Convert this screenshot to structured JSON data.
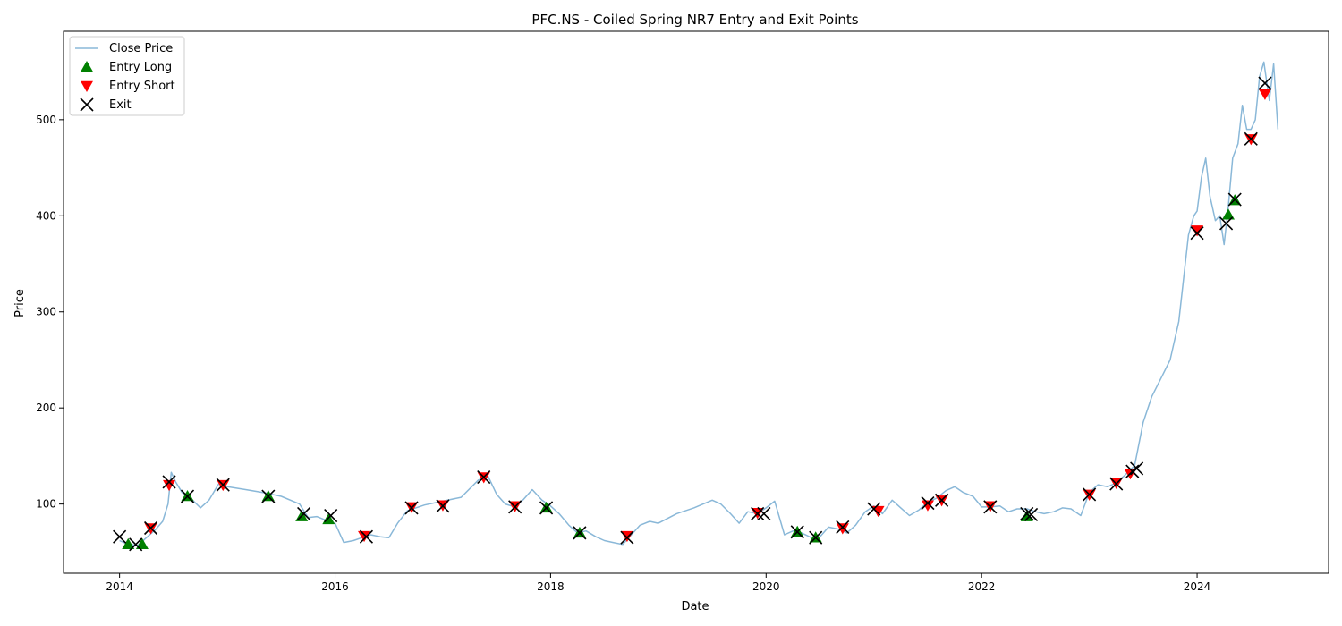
{
  "chart_data": {
    "type": "line",
    "title": "PFC.NS - Coiled Spring NR7 Entry and Exit Points",
    "xlabel": "Date",
    "ylabel": "Price",
    "xlim": [
      2013.48,
      2025.22
    ],
    "ylim": [
      28,
      592
    ],
    "xticks": [
      2014,
      2016,
      2018,
      2020,
      2022,
      2024
    ],
    "xtick_labels": [
      "2014",
      "2016",
      "2018",
      "2020",
      "2022",
      "2024"
    ],
    "yticks": [
      100,
      200,
      300,
      400,
      500
    ],
    "ytick_labels": [
      "100",
      "200",
      "300",
      "400",
      "500"
    ],
    "grid": false,
    "legend": {
      "placement": "top-left",
      "entries": [
        {
          "key": "close",
          "label": "Close Price",
          "color": "#8ab8d8",
          "marker": "line"
        },
        {
          "key": "long",
          "label": "Entry Long",
          "color": "#008000",
          "marker": "triangle-up"
        },
        {
          "key": "short",
          "label": "Entry Short",
          "color": "#ff0000",
          "marker": "triangle-down"
        },
        {
          "key": "exit",
          "label": "Exit",
          "color": "#000000",
          "marker": "x"
        }
      ]
    },
    "series": [
      {
        "name": "Close Price",
        "color": "#8ab8d8",
        "x": [
          2014.0,
          2014.08,
          2014.17,
          2014.25,
          2014.33,
          2014.4,
          2014.45,
          2014.48,
          2014.52,
          2014.58,
          2014.67,
          2014.75,
          2014.83,
          2014.92,
          2015.0,
          2015.17,
          2015.33,
          2015.5,
          2015.67,
          2015.75,
          2015.83,
          2015.92,
          2016.0,
          2016.08,
          2016.17,
          2016.25,
          2016.33,
          2016.42,
          2016.5,
          2016.58,
          2016.67,
          2016.83,
          2017.0,
          2017.17,
          2017.33,
          2017.42,
          2017.5,
          2017.58,
          2017.67,
          2017.75,
          2017.83,
          2017.92,
          2018.0,
          2018.08,
          2018.17,
          2018.25,
          2018.33,
          2018.42,
          2018.5,
          2018.58,
          2018.67,
          2018.75,
          2018.83,
          2018.92,
          2019.0,
          2019.17,
          2019.33,
          2019.5,
          2019.58,
          2019.67,
          2019.75,
          2019.83,
          2019.92,
          2020.0,
          2020.08,
          2020.17,
          2020.25,
          2020.33,
          2020.42,
          2020.5,
          2020.58,
          2020.67,
          2020.75,
          2020.83,
          2020.92,
          2021.0,
          2021.08,
          2021.17,
          2021.25,
          2021.33,
          2021.42,
          2021.5,
          2021.58,
          2021.67,
          2021.75,
          2021.83,
          2021.92,
          2022.0,
          2022.08,
          2022.17,
          2022.25,
          2022.33,
          2022.42,
          2022.5,
          2022.58,
          2022.67,
          2022.75,
          2022.83,
          2022.92,
          2023.0,
          2023.08,
          2023.17,
          2023.25,
          2023.33,
          2023.42,
          2023.5,
          2023.58,
          2023.67,
          2023.75,
          2023.83,
          2023.92,
          2023.97,
          2024.0,
          2024.04,
          2024.08,
          2024.12,
          2024.17,
          2024.21,
          2024.25,
          2024.29,
          2024.33,
          2024.38,
          2024.42,
          2024.46,
          2024.5,
          2024.54,
          2024.58,
          2024.62,
          2024.67,
          2024.71,
          2024.75
        ],
        "values": [
          62,
          58,
          57,
          65,
          73,
          82,
          100,
          133,
          123,
          112,
          105,
          96,
          104,
          121,
          118,
          115,
          112,
          108,
          100,
          86,
          87,
          83,
          80,
          60,
          62,
          65,
          68,
          66,
          65,
          80,
          93,
          99,
          103,
          107,
          125,
          129,
          110,
          100,
          97,
          105,
          115,
          104,
          98,
          90,
          78,
          70,
          72,
          66,
          62,
          60,
          58,
          68,
          78,
          82,
          80,
          90,
          96,
          104,
          100,
          90,
          80,
          92,
          90,
          96,
          103,
          68,
          72,
          70,
          65,
          66,
          76,
          74,
          70,
          78,
          92,
          98,
          90,
          104,
          96,
          88,
          94,
          102,
          106,
          114,
          118,
          112,
          108,
          97,
          97,
          98,
          92,
          95,
          95,
          92,
          90,
          92,
          96,
          95,
          88,
          112,
          120,
          118,
          122,
          130,
          140,
          185,
          212,
          232,
          250,
          290,
          380,
          400,
          405,
          440,
          460,
          420,
          395,
          400,
          370,
          410,
          460,
          475,
          515,
          490,
          490,
          500,
          545,
          560,
          520,
          558,
          490
        ]
      }
    ],
    "entries_long": [
      {
        "x": 2014.08,
        "y": 58
      },
      {
        "x": 2014.21,
        "y": 58
      },
      {
        "x": 2014.63,
        "y": 108
      },
      {
        "x": 2015.38,
        "y": 108
      },
      {
        "x": 2015.69,
        "y": 87
      },
      {
        "x": 2015.94,
        "y": 84
      },
      {
        "x": 2017.96,
        "y": 96
      },
      {
        "x": 2018.27,
        "y": 70
      },
      {
        "x": 2020.29,
        "y": 71
      },
      {
        "x": 2020.46,
        "y": 65
      },
      {
        "x": 2022.42,
        "y": 87
      },
      {
        "x": 2024.29,
        "y": 401
      },
      {
        "x": 2024.35,
        "y": 416
      }
    ],
    "entries_short": [
      {
        "x": 2014.29,
        "y": 75
      },
      {
        "x": 2014.46,
        "y": 120
      },
      {
        "x": 2014.96,
        "y": 120
      },
      {
        "x": 2016.27,
        "y": 67
      },
      {
        "x": 2016.71,
        "y": 97
      },
      {
        "x": 2017.0,
        "y": 99
      },
      {
        "x": 2017.38,
        "y": 128
      },
      {
        "x": 2017.67,
        "y": 98
      },
      {
        "x": 2018.71,
        "y": 67
      },
      {
        "x": 2019.92,
        "y": 91
      },
      {
        "x": 2020.71,
        "y": 75
      },
      {
        "x": 2021.04,
        "y": 93
      },
      {
        "x": 2021.5,
        "y": 99
      },
      {
        "x": 2021.63,
        "y": 104
      },
      {
        "x": 2022.08,
        "y": 98
      },
      {
        "x": 2023.0,
        "y": 110
      },
      {
        "x": 2023.25,
        "y": 122
      },
      {
        "x": 2023.38,
        "y": 132
      },
      {
        "x": 2024.0,
        "y": 385
      },
      {
        "x": 2024.5,
        "y": 480
      },
      {
        "x": 2024.63,
        "y": 527
      }
    ],
    "exits": [
      {
        "x": 2014.0,
        "y": 66
      },
      {
        "x": 2014.15,
        "y": 58
      },
      {
        "x": 2014.29,
        "y": 75
      },
      {
        "x": 2014.46,
        "y": 123
      },
      {
        "x": 2014.63,
        "y": 108
      },
      {
        "x": 2014.96,
        "y": 120
      },
      {
        "x": 2015.38,
        "y": 108
      },
      {
        "x": 2015.71,
        "y": 90
      },
      {
        "x": 2015.96,
        "y": 88
      },
      {
        "x": 2016.29,
        "y": 66
      },
      {
        "x": 2016.71,
        "y": 96
      },
      {
        "x": 2017.0,
        "y": 98
      },
      {
        "x": 2017.38,
        "y": 128
      },
      {
        "x": 2017.67,
        "y": 97
      },
      {
        "x": 2017.96,
        "y": 96
      },
      {
        "x": 2018.27,
        "y": 70
      },
      {
        "x": 2018.71,
        "y": 65
      },
      {
        "x": 2019.92,
        "y": 90
      },
      {
        "x": 2019.98,
        "y": 90
      },
      {
        "x": 2020.29,
        "y": 71
      },
      {
        "x": 2020.46,
        "y": 65
      },
      {
        "x": 2020.71,
        "y": 76
      },
      {
        "x": 2021.0,
        "y": 95
      },
      {
        "x": 2021.5,
        "y": 101
      },
      {
        "x": 2021.63,
        "y": 104
      },
      {
        "x": 2022.08,
        "y": 97
      },
      {
        "x": 2022.42,
        "y": 90
      },
      {
        "x": 2022.46,
        "y": 89
      },
      {
        "x": 2023.0,
        "y": 110
      },
      {
        "x": 2023.25,
        "y": 121
      },
      {
        "x": 2023.4,
        "y": 134
      },
      {
        "x": 2023.44,
        "y": 137
      },
      {
        "x": 2024.0,
        "y": 382
      },
      {
        "x": 2024.27,
        "y": 392
      },
      {
        "x": 2024.35,
        "y": 417
      },
      {
        "x": 2024.5,
        "y": 480
      },
      {
        "x": 2024.63,
        "y": 538
      }
    ]
  }
}
